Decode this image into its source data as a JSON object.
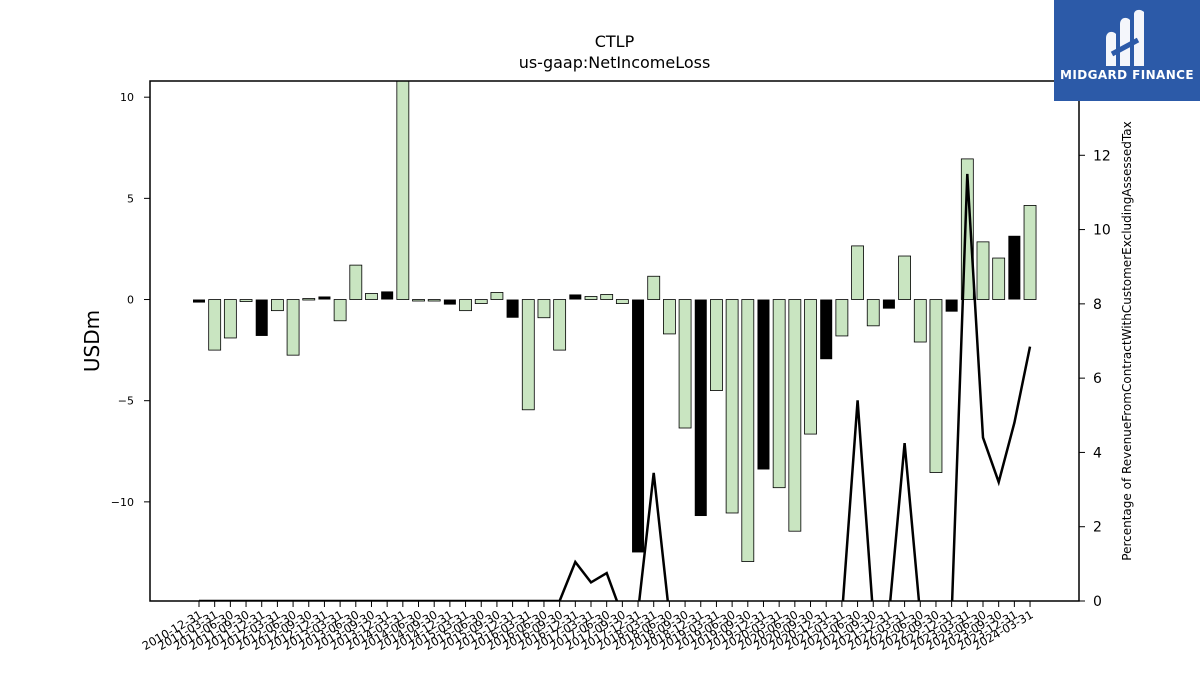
{
  "brand": {
    "name": "MIDGARD FINANCE",
    "bg": "#2c5aa8"
  },
  "chart_data": {
    "type": "bar",
    "title": "CTLP",
    "subtitle": "us-gaap:NetIncomeLoss",
    "ylabel": "USDm",
    "y2label": "Percentage of RevenueFromContractWithCustomerExcludingAssessedTax",
    "ylim": [
      -14.9,
      10.8
    ],
    "y2lim": [
      0,
      14.0
    ],
    "yticks": [
      -10,
      -5,
      0,
      5,
      10
    ],
    "y2ticks": [
      0,
      2,
      4,
      6,
      8,
      10,
      12
    ],
    "colors": {
      "annual": "#000000",
      "quarterly": "#c9e5c1",
      "line": "#000000"
    },
    "categories": [
      "2010-12-31",
      "2011-03-31",
      "2011-06-30",
      "2011-09-30",
      "2011-12-31",
      "2012-03-31",
      "2012-06-30",
      "2012-09-30",
      "2012-12-31",
      "2013-03-31",
      "2013-06-30",
      "2013-09-30",
      "2013-12-31",
      "2014-03-31",
      "2014-06-30",
      "2014-09-30",
      "2014-12-31",
      "2015-03-31",
      "2015-06-30",
      "2015-09-30",
      "2015-12-31",
      "2016-03-31",
      "2016-06-30",
      "2016-09-30",
      "2016-12-31",
      "2017-03-31",
      "2017-06-30",
      "2017-09-30",
      "2017-12-31",
      "2018-03-31",
      "2018-06-30",
      "2018-09-30",
      "2018-12-31",
      "2019-03-31",
      "2019-06-30",
      "2019-09-30",
      "2019-12-31",
      "2020-03-31",
      "2020-06-30",
      "2020-09-30",
      "2020-12-31",
      "2021-03-31",
      "2021-06-30",
      "2021-09-30",
      "2021-12-31",
      "2022-03-31",
      "2022-06-30",
      "2022-09-30",
      "2022-12-31",
      "2023-03-31",
      "2023-06-30",
      "2023-09-30",
      "2023-12-31",
      "2024-03-31"
    ],
    "series": [
      {
        "values": [
          -0.15,
          -2.5,
          -1.9,
          -0.1,
          -1.8,
          -0.55,
          -2.75,
          0.05,
          0.15,
          -1.05,
          1.7,
          0.3,
          0.4,
          10.8,
          -0.05,
          -0.05,
          -0.25,
          -0.55,
          -0.2,
          0.35,
          -0.9,
          -5.45,
          -0.9,
          -2.5,
          0.25,
          0.15,
          0.25,
          -0.2,
          -12.5,
          1.15,
          -1.7,
          -6.35,
          -10.7,
          -4.5,
          -10.55,
          -12.95,
          -8.4,
          -9.3,
          -11.45,
          -6.65,
          -2.95,
          -1.8,
          2.65,
          -1.3,
          -0.45,
          2.15,
          -2.1,
          -8.55,
          -0.6,
          6.95,
          2.85,
          2.05,
          3.15,
          4.65
        ],
        "annual": [
          true,
          false,
          false,
          false,
          true,
          false,
          false,
          false,
          true,
          false,
          false,
          false,
          true,
          false,
          false,
          false,
          true,
          false,
          false,
          false,
          true,
          false,
          false,
          false,
          true,
          false,
          false,
          false,
          true,
          false,
          false,
          false,
          true,
          false,
          false,
          false,
          true,
          false,
          false,
          false,
          true,
          false,
          false,
          false,
          true,
          false,
          false,
          false,
          true,
          false,
          false,
          false,
          true,
          false
        ]
      },
      {
        "values": [
          0,
          0,
          0,
          0,
          0,
          0,
          0,
          0,
          0,
          0,
          0,
          0,
          0,
          0,
          0,
          0,
          0,
          0,
          0,
          0,
          0,
          0,
          0,
          0,
          1.05,
          0.5,
          0.75,
          -0.4,
          -0.3,
          3.45,
          -0.4,
          -0.4,
          -0.4,
          -0.4,
          -0.4,
          -0.4,
          -0.4,
          -0.4,
          -0.4,
          -0.4,
          -0.4,
          -0.4,
          5.4,
          -0.4,
          -0.4,
          4.25,
          -0.4,
          -0.4,
          -0.4,
          11.5,
          4.4,
          3.2,
          4.8,
          6.85
        ]
      }
    ]
  }
}
